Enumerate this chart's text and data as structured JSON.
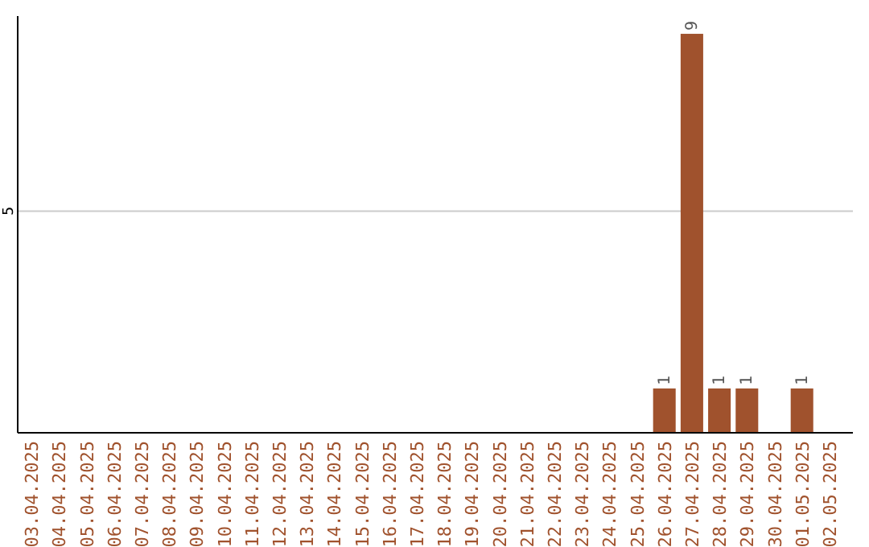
{
  "chart_data": {
    "type": "bar",
    "categories": [
      "03.04.2025",
      "04.04.2025",
      "05.04.2025",
      "06.04.2025",
      "07.04.2025",
      "08.04.2025",
      "09.04.2025",
      "10.04.2025",
      "11.04.2025",
      "12.04.2025",
      "13.04.2025",
      "14.04.2025",
      "15.04.2025",
      "16.04.2025",
      "17.04.2025",
      "18.04.2025",
      "19.04.2025",
      "20.04.2025",
      "21.04.2025",
      "22.04.2025",
      "23.04.2025",
      "24.04.2025",
      "25.04.2025",
      "26.04.2025",
      "27.04.2025",
      "28.04.2025",
      "29.04.2025",
      "30.04.2025",
      "01.05.2025",
      "02.05.2025"
    ],
    "values": [
      null,
      null,
      null,
      null,
      null,
      null,
      null,
      null,
      null,
      null,
      null,
      null,
      null,
      null,
      null,
      null,
      null,
      null,
      null,
      null,
      null,
      null,
      null,
      1,
      9,
      1,
      1,
      null,
      1,
      null
    ],
    "value_labels": [
      null,
      null,
      null,
      null,
      null,
      null,
      null,
      null,
      null,
      null,
      null,
      null,
      null,
      null,
      null,
      null,
      null,
      null,
      null,
      null,
      null,
      null,
      null,
      "1",
      "9",
      "1",
      "1",
      null,
      "1",
      null
    ],
    "color": "#a0522d",
    "ylim": [
      0,
      9.4
    ],
    "yticks": [
      5
    ],
    "grid": "y"
  }
}
